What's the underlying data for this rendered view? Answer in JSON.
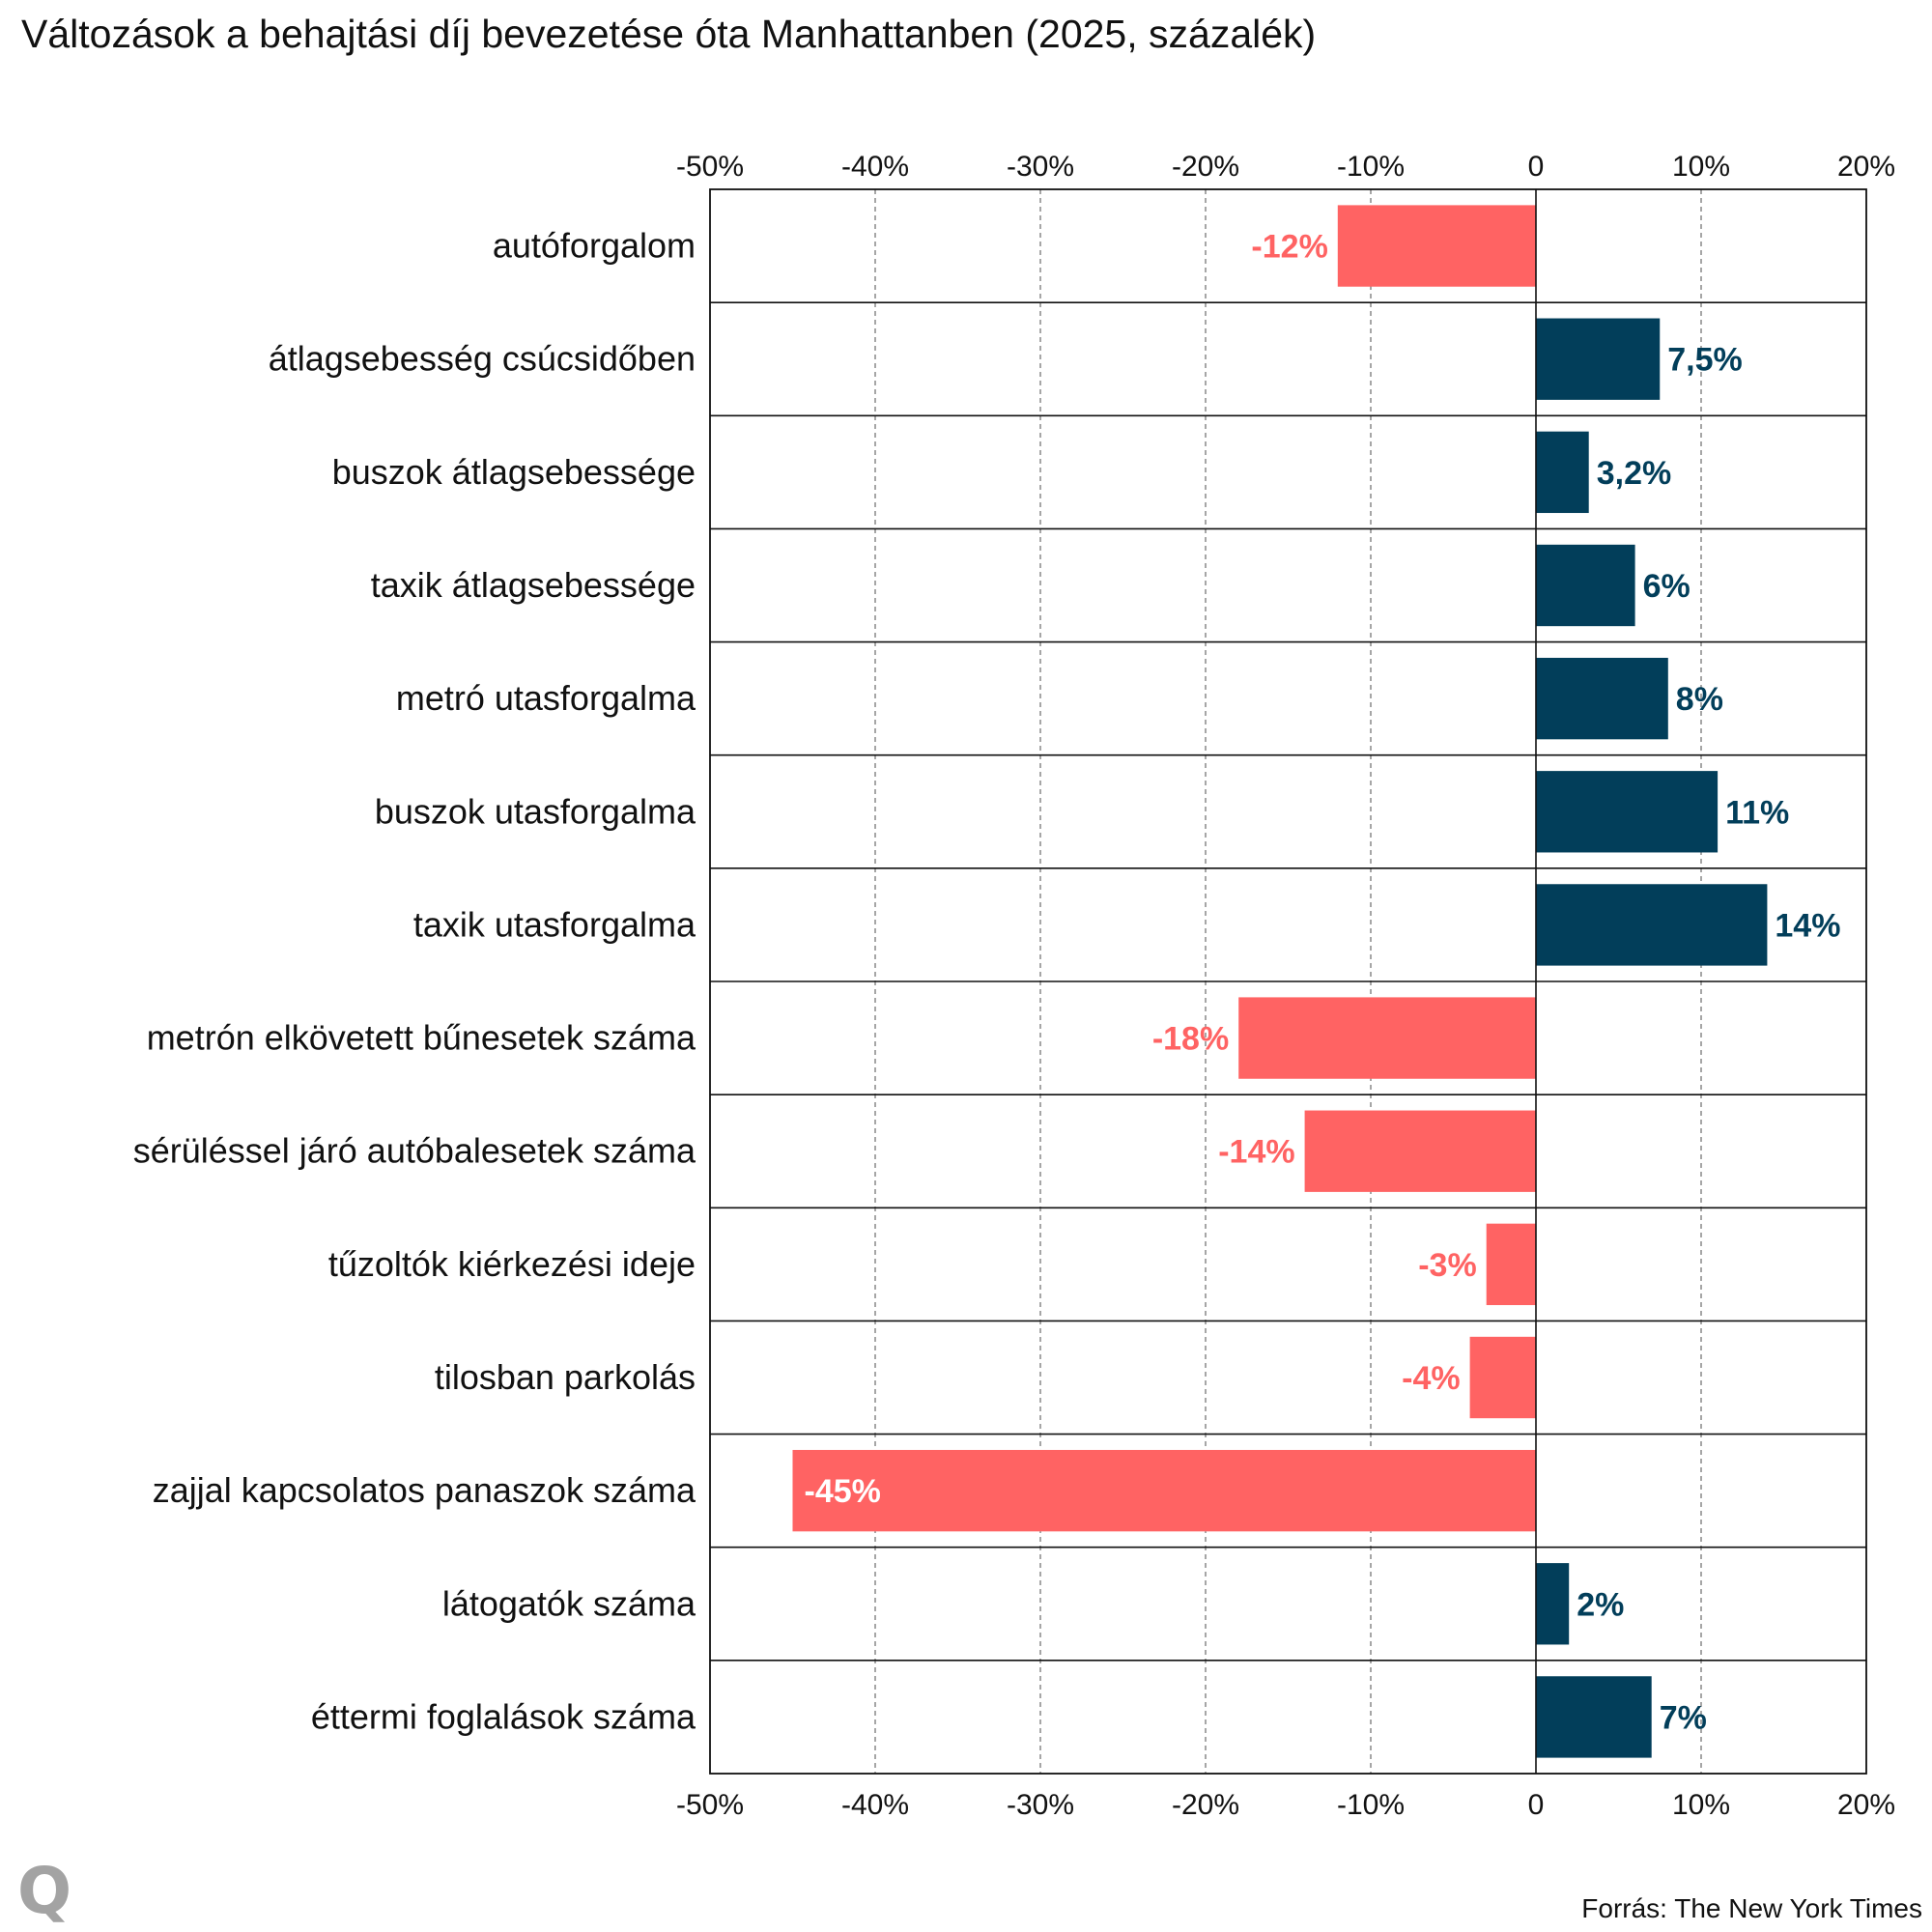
{
  "chart_data": {
    "type": "bar",
    "orientation": "horizontal",
    "title": "Változások a behajtási díj bevezetése óta Manhattanben (2025, százalék)",
    "categories": [
      "autóforgalom",
      "átlagsebesség csúcsidőben",
      "buszok átlagsebessége",
      "taxik átlagsebessége",
      "metró utasforgalma",
      "buszok utasforgalma",
      "taxik utasforgalma",
      "metrón elkövetett bűnesetek száma",
      "sérüléssel járó autóbalesetek száma",
      "tűzoltók kiérkezési ideje",
      "tilosban parkolás",
      "zajjal kapcsolatos panaszok száma",
      "látogatók száma",
      "éttermi foglalások száma"
    ],
    "values": [
      -12,
      7.5,
      3.2,
      6,
      8,
      11,
      14,
      -18,
      -14,
      -3,
      -4,
      -45,
      2,
      7
    ],
    "value_labels": [
      "-12%",
      "7,5%",
      "3,2%",
      "6%",
      "8%",
      "11%",
      "14%",
      "-18%",
      "-14%",
      "-3%",
      "-4%",
      "-45%",
      "2%",
      "7%"
    ],
    "xlim": [
      -50,
      20
    ],
    "x_ticks": [
      -50,
      -40,
      -30,
      -20,
      -10,
      0,
      10,
      20
    ],
    "x_tick_labels": [
      "-50%",
      "-40%",
      "-30%",
      "-20%",
      "-10%",
      "0",
      "10%",
      "20%"
    ],
    "axis_position": "top and bottom",
    "grid": true,
    "colors": {
      "positive": "#023e5a",
      "negative": "#ff6363",
      "inside_label": "#ffffff"
    }
  },
  "source": "Forrás: The New York Times",
  "logo": "Q"
}
